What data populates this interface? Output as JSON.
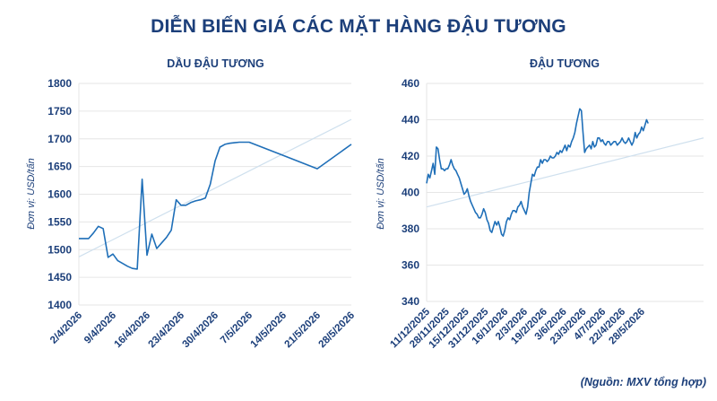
{
  "title": "DIỄN BIẾN GIÁ CÁC MẶT HÀNG ĐẬU TƯƠNG",
  "source": "(Nguồn: MXV tổng hợp)",
  "colors": {
    "title": "#1c3f7a",
    "line": "#1f6fb8",
    "trend": "#cfe0ee",
    "grid": "#e6e6e6"
  },
  "chart_data": [
    {
      "type": "line",
      "title": "DẦU ĐẬU TƯƠNG",
      "ylabel": "Đơn vị: USD/tấn",
      "ylim": [
        1400,
        1800
      ],
      "yticks": [
        "1400",
        "1450",
        "1500",
        "1550",
        "1600",
        "1650",
        "1700",
        "1750",
        "1800"
      ],
      "grid": "horizontal",
      "xlim": [
        0,
        56
      ],
      "xticks": [
        {
          "label": "2/4/2026",
          "pos": 0
        },
        {
          "label": "9/4/2026",
          "pos": 7
        },
        {
          "label": "16/4/2026",
          "pos": 14
        },
        {
          "label": "23/4/2026",
          "pos": 21
        },
        {
          "label": "30/4/2026",
          "pos": 28
        },
        {
          "label": "7/5/2026",
          "pos": 35
        },
        {
          "label": "14/5/2026",
          "pos": 42
        },
        {
          "label": "21/5/2026",
          "pos": 49
        },
        {
          "label": "28/5/2026",
          "pos": 56
        }
      ],
      "series": [
        {
          "x": [
            0,
            1,
            2,
            3,
            4,
            5,
            6,
            7,
            8,
            9,
            10,
            11,
            12,
            13,
            14,
            15,
            16,
            17,
            18,
            19,
            20,
            21,
            22,
            23,
            24,
            25,
            26,
            27,
            28,
            29,
            30,
            31,
            32,
            33,
            34,
            35,
            42,
            49,
            56
          ],
          "values": [
            1520,
            1520,
            1520,
            1530,
            1542,
            1538,
            1486,
            1492,
            1480,
            1475,
            1470,
            1466,
            1465,
            1627,
            1490,
            1528,
            1502,
            1512,
            1522,
            1535,
            1590,
            1580,
            1580,
            1585,
            1588,
            1590,
            1593,
            1618,
            1660,
            1685,
            1690,
            1692,
            1693,
            1694,
            1694,
            1694,
            1670,
            1646,
            1690
          ]
        }
      ],
      "trend": [
        1487,
        1735
      ]
    },
    {
      "type": "line",
      "title": "ĐẬU TƯƠNG",
      "ylabel": "Đơn vị: USD/tấn",
      "ylim": [
        340,
        460
      ],
      "yticks": [
        "340",
        "360",
        "380",
        "400",
        "420",
        "440",
        "460"
      ],
      "grid": "horizontal",
      "xlim": [
        0,
        170
      ],
      "xticks": [
        {
          "label": "11/12/2025",
          "pos": 0
        },
        {
          "label": "28/11/2025",
          "pos": 12
        },
        {
          "label": "15/12/2025",
          "pos": 24
        },
        {
          "label": "31/12/2025",
          "pos": 36
        },
        {
          "label": "16/1/2026",
          "pos": 48
        },
        {
          "label": "2/3/2026",
          "pos": 60
        },
        {
          "label": "19/2/2026",
          "pos": 72
        },
        {
          "label": "3/6/2026",
          "pos": 84
        },
        {
          "label": "23/3/2026",
          "pos": 96
        },
        {
          "label": "4/7/2026",
          "pos": 108
        },
        {
          "label": "22/4/2026",
          "pos": 120
        },
        {
          "label": "28/5/2026",
          "pos": 132
        }
      ],
      "series": [
        {
          "x": [
            0,
            1,
            2,
            3,
            4,
            5,
            6,
            7,
            8,
            9,
            10,
            11,
            12,
            13,
            14,
            15,
            16,
            17,
            18,
            19,
            20,
            21,
            22,
            23,
            24,
            25,
            26,
            27,
            28,
            29,
            30,
            31,
            32,
            33,
            34,
            35,
            36,
            37,
            38,
            39,
            40,
            41,
            42,
            43,
            44,
            45,
            46,
            47,
            48,
            49,
            50,
            51,
            52,
            53,
            54,
            55,
            56,
            57,
            58,
            59,
            60,
            61,
            62,
            63,
            64,
            65,
            66,
            67,
            68,
            69,
            70,
            71,
            72,
            73,
            74,
            75,
            76,
            77,
            78,
            79,
            80,
            81,
            82,
            83,
            84,
            85,
            86,
            87,
            88,
            89,
            90,
            91,
            92,
            93,
            94,
            95,
            96,
            97,
            98,
            99,
            100,
            101,
            102,
            103,
            104,
            105,
            106,
            107,
            108,
            109,
            110,
            111,
            112,
            113,
            114,
            115,
            116,
            117,
            118,
            119,
            120,
            121,
            122,
            123,
            124,
            125,
            126,
            127,
            128,
            129,
            130,
            131,
            132,
            133,
            134,
            135,
            136
          ],
          "values": [
            405,
            410,
            408,
            412,
            416,
            410,
            425,
            424,
            418,
            413,
            413,
            412,
            413,
            413,
            415,
            418,
            415,
            413,
            412,
            410,
            408,
            405,
            402,
            399,
            400,
            402,
            398,
            395,
            393,
            391,
            389,
            388,
            386,
            386,
            388,
            391,
            389,
            385,
            383,
            379,
            378,
            381,
            384,
            382,
            384,
            381,
            377,
            376,
            379,
            384,
            386,
            385,
            388,
            390,
            390,
            389,
            392,
            393,
            395,
            392,
            390,
            388,
            392,
            400,
            405,
            410,
            409,
            412,
            414,
            414,
            418,
            416,
            418,
            418,
            417,
            418,
            420,
            419,
            419,
            420,
            422,
            421,
            423,
            422,
            424,
            426,
            423,
            426,
            425,
            428,
            430,
            433,
            438,
            442,
            446,
            445,
            433,
            422,
            424,
            425,
            426,
            424,
            428,
            425,
            426,
            430,
            430,
            428,
            429,
            427,
            426,
            428,
            428,
            426,
            427,
            428,
            428,
            426,
            427,
            428,
            430,
            428,
            427,
            428,
            430,
            428,
            426,
            428,
            433,
            430,
            432,
            433,
            436,
            434,
            437,
            440,
            438
          ]
        }
      ],
      "trend": [
        392,
        430
      ]
    }
  ]
}
